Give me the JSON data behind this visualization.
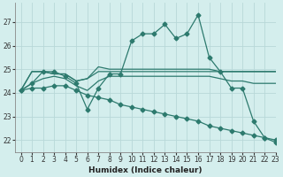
{
  "xlabel": "Humidex (Indice chaleur)",
  "xlim": [
    -0.5,
    23
  ],
  "ylim": [
    21.5,
    27.8
  ],
  "yticks": [
    22,
    23,
    24,
    25,
    26,
    27
  ],
  "xticks": [
    0,
    1,
    2,
    3,
    4,
    5,
    6,
    7,
    8,
    9,
    10,
    11,
    12,
    13,
    14,
    15,
    16,
    17,
    18,
    19,
    20,
    21,
    22,
    23
  ],
  "bg_color": "#d4eeed",
  "line_color": "#2d7a6e",
  "grid_color": "#b8d8d8",
  "series": [
    {
      "x": [
        0,
        1,
        2,
        3,
        4,
        5,
        6,
        7,
        8,
        9,
        10,
        11,
        12,
        13,
        14,
        15,
        16,
        17,
        18,
        19,
        20,
        21,
        22,
        23
      ],
      "y": [
        24.1,
        24.4,
        24.9,
        24.9,
        24.7,
        24.4,
        23.3,
        24.2,
        24.8,
        24.8,
        26.2,
        26.5,
        26.5,
        26.9,
        26.3,
        26.5,
        27.3,
        25.5,
        24.9,
        24.2,
        24.2,
        22.8,
        22.1,
        21.9
      ],
      "marker": true
    },
    {
      "x": [
        0,
        1,
        2,
        3,
        4,
        5,
        6,
        7,
        8,
        9,
        10,
        11,
        12,
        13,
        14,
        15,
        16,
        17,
        18,
        19,
        20,
        21,
        22,
        23
      ],
      "y": [
        24.1,
        24.9,
        24.9,
        24.8,
        24.8,
        24.5,
        24.6,
        25.1,
        25.0,
        25.0,
        25.0,
        25.0,
        25.0,
        25.0,
        25.0,
        25.0,
        25.0,
        25.0,
        24.9,
        24.9,
        24.9,
        24.9,
        24.9,
        24.9
      ],
      "marker": false
    },
    {
      "x": [
        0,
        1,
        2,
        3,
        4,
        5,
        6,
        7,
        8,
        9,
        10,
        11,
        12,
        13,
        14,
        15,
        16,
        17,
        18,
        19,
        20,
        21,
        22,
        23
      ],
      "y": [
        24.1,
        24.9,
        24.9,
        24.8,
        24.8,
        24.5,
        24.6,
        24.9,
        24.9,
        24.9,
        24.9,
        24.9,
        24.9,
        24.9,
        24.9,
        24.9,
        24.9,
        24.9,
        24.9,
        24.9,
        24.9,
        24.9,
        24.9,
        24.9
      ],
      "marker": false
    },
    {
      "x": [
        0,
        1,
        2,
        3,
        4,
        5,
        6,
        7,
        8,
        9,
        10,
        11,
        12,
        13,
        14,
        15,
        16,
        17,
        18,
        19,
        20,
        21,
        22,
        23
      ],
      "y": [
        24.1,
        24.4,
        24.6,
        24.7,
        24.6,
        24.3,
        24.1,
        24.5,
        24.7,
        24.7,
        24.7,
        24.7,
        24.7,
        24.7,
        24.7,
        24.7,
        24.7,
        24.7,
        24.6,
        24.5,
        24.5,
        24.4,
        24.4,
        24.4
      ],
      "marker": false
    },
    {
      "x": [
        0,
        1,
        2,
        3,
        4,
        5,
        6,
        7,
        8,
        9,
        10,
        11,
        12,
        13,
        14,
        15,
        16,
        17,
        18,
        19,
        20,
        21,
        22,
        23
      ],
      "y": [
        24.1,
        24.2,
        24.2,
        24.3,
        24.3,
        24.1,
        23.9,
        23.8,
        23.7,
        23.5,
        23.4,
        23.3,
        23.2,
        23.1,
        23.0,
        22.9,
        22.8,
        22.6,
        22.5,
        22.4,
        22.3,
        22.2,
        22.1,
        22.0
      ],
      "marker": true
    }
  ]
}
